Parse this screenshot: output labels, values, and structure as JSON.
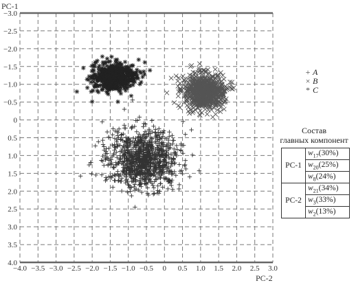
{
  "chart_data": {
    "type": "scatter",
    "xlabel": "PC-2",
    "ylabel": "PC-1",
    "xlim": [
      -4.0,
      3.0
    ],
    "ylim": [
      4.0,
      -3.0
    ],
    "y_axis_inverted": true,
    "grid": true,
    "grid_style": "dashed",
    "legend_position": "right",
    "x_ticks": [
      "−4.0",
      "−3.5",
      "−3.0",
      "−2.5",
      "−2.0",
      "−1.5",
      "−1.0",
      "−0.5",
      "0",
      "0.5",
      "1.0",
      "1.5",
      "2.0",
      "2.5",
      "3.0"
    ],
    "y_ticks": [
      "−3.0",
      "−2.5",
      "−2.0",
      "−1.5",
      "−1.0",
      "−0.5",
      "0",
      "0.5",
      "1.0",
      "1.5",
      "2.0",
      "2.5",
      "3.0",
      "3.5",
      "4.0"
    ],
    "series": [
      {
        "name": "A",
        "marker": "+",
        "color": "#333333",
        "n_points": 1000,
        "center": [
          -0.6,
          1.1
        ],
        "spread": [
          0.9,
          0.75
        ]
      },
      {
        "name": "B",
        "marker": "×",
        "color": "#555555",
        "n_points": 750,
        "center": [
          1.1,
          -0.8
        ],
        "spread": [
          0.5,
          0.45
        ]
      },
      {
        "name": "C",
        "marker": "*",
        "color": "#222222",
        "n_points": 600,
        "center": [
          -1.4,
          -1.2
        ],
        "spread": [
          0.55,
          0.35
        ]
      }
    ]
  },
  "legend": [
    {
      "symbol": "+",
      "name": "A"
    },
    {
      "symbol": "×",
      "name": "B"
    },
    {
      "symbol": "*",
      "name": "C"
    }
  ],
  "composition": {
    "title_line1": "Состав",
    "title_line2": "главных компонент",
    "groups": [
      {
        "pc": "PC-1",
        "items": [
          {
            "w": "w",
            "sub": "17",
            "pct": "(30%)"
          },
          {
            "w": "w",
            "sub": "20",
            "pct": "(25%)"
          },
          {
            "w": "w",
            "sub": "8",
            "pct": "(24%)"
          }
        ]
      },
      {
        "pc": "PC-2",
        "items": [
          {
            "w": "w",
            "sub": "21",
            "pct": "(34%)"
          },
          {
            "w": "w",
            "sub": "3",
            "pct": "(33%)"
          },
          {
            "w": "w",
            "sub": "2",
            "pct": "(13%)"
          }
        ]
      }
    ]
  }
}
